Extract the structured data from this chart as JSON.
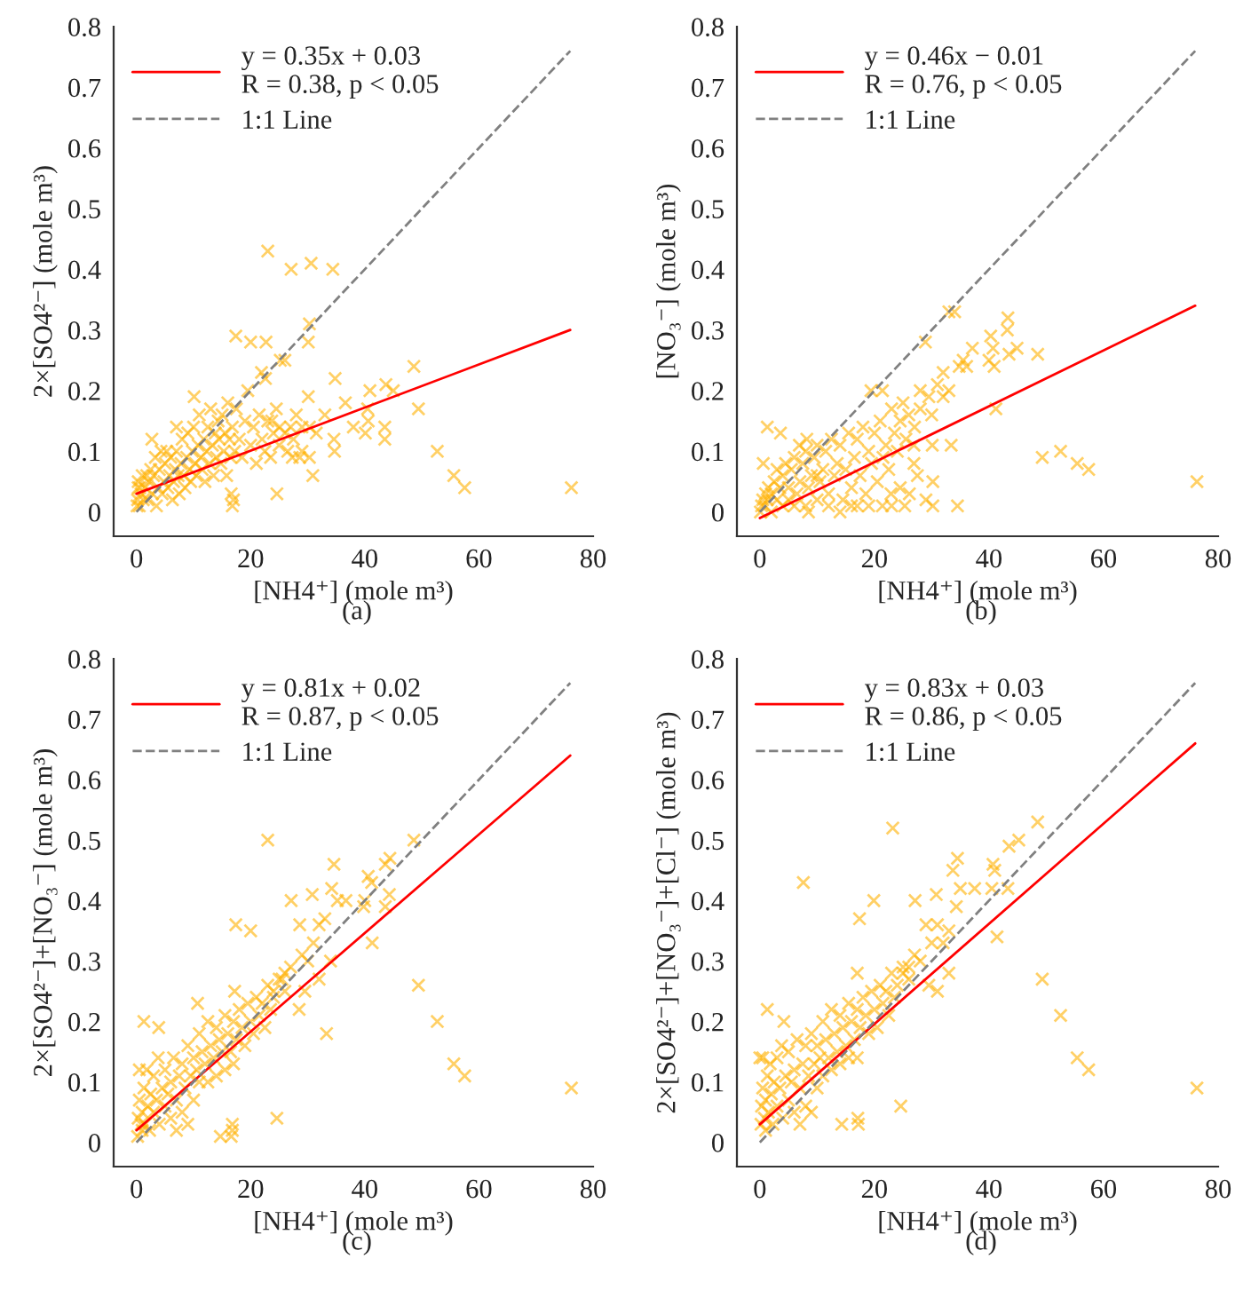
{
  "chart_data": [
    {
      "type": "scatter",
      "xlabel": "[NH4⁺] (mole m³)",
      "ylabel": "2×[SO4²⁻] (mole m³)",
      "annotations": [
        "(a)"
      ],
      "xlim": [
        -4,
        80
      ],
      "ylim": [
        -0.04,
        0.8
      ],
      "xticks": [
        0,
        20,
        40,
        60,
        80
      ],
      "yticks": [
        0,
        0.1,
        0.2,
        0.3,
        0.4,
        0.5,
        0.6,
        0.7,
        0.8
      ],
      "legend": "top left",
      "series": [
        {
          "color": "#ffb000",
          "marker": "cross",
          "x": [
            76.2,
            57.5,
            55.6,
            52.7,
            49.4,
            48.6,
            45,
            43.7,
            43.5,
            43.5,
            40.9,
            40.5,
            40.6,
            40.1,
            36.6,
            34.8,
            34.4,
            30.6,
            27.1,
            23,
            30.1,
            30.3,
            22.7,
            17.4,
            20,
            26,
            25.2,
            21.9,
            22.6,
            10.1,
            2.7,
            7,
            30.3,
            30.9,
            30.3,
            27.3,
            30.1,
            34.6,
            34.7,
            24.6,
            16.8,
            16.6,
            23.7,
            25.1,
            27,
            33,
            28.6,
            31.5,
            38,
            0.1,
            0.2,
            0.3,
            0.3,
            0.5,
            0.6,
            0.8,
            1,
            1.2,
            1.5,
            1.8,
            2,
            2.2,
            2.5,
            2.8,
            3,
            3.3,
            3.5,
            3.8,
            4,
            4.3,
            4.5,
            4.8,
            5,
            5.3,
            5.5,
            5.8,
            6,
            6.3,
            6.5,
            6.8,
            7,
            7.3,
            7.5,
            7.8,
            8,
            8.3,
            8.5,
            8.8,
            9,
            9.3,
            9.5,
            9.8,
            10,
            10.3,
            10.5,
            10.8,
            11,
            11.3,
            11.5,
            11.8,
            12,
            12.3,
            12.5,
            12.8,
            13,
            13.3,
            13.5,
            13.8,
            14,
            14.3,
            14.5,
            14.8,
            15,
            15.3,
            15.5,
            15.8,
            16,
            16.3,
            16.5,
            16.8,
            17,
            17.2,
            17.5,
            18,
            18.5,
            19,
            19.5,
            20,
            20.5,
            21,
            21.5,
            22,
            22.5,
            23,
            23.5,
            24,
            24.5,
            25,
            26,
            26.5,
            27.5,
            28,
            29,
            29
          ],
          "values": [
            0.04,
            0.04,
            0.06,
            0.1,
            0.17,
            0.24,
            0.2,
            0.21,
            0.14,
            0.12,
            0.2,
            0.17,
            0.15,
            0.13,
            0.18,
            0.22,
            0.4,
            0.41,
            0.4,
            0.43,
            0.28,
            0.31,
            0.28,
            0.29,
            0.28,
            0.25,
            0.25,
            0.23,
            0.22,
            0.19,
            0.12,
            0.14,
            0.14,
            0.06,
            0.09,
            0.09,
            0.19,
            0.12,
            0.1,
            0.03,
            0.01,
            0.03,
            0.15,
            0.14,
            0.14,
            0.16,
            0.09,
            0.13,
            0.14,
            0.01,
            0.02,
            0.04,
            0.05,
            0.01,
            0.04,
            0.03,
            0.06,
            0.02,
            0.04,
            0.06,
            0.02,
            0.05,
            0.07,
            0.03,
            0.06,
            0.09,
            0.01,
            0.04,
            0.07,
            0.1,
            0.03,
            0.05,
            0.08,
            0.1,
            0.04,
            0.06,
            0.09,
            0.02,
            0.05,
            0.07,
            0.1,
            0.06,
            0.03,
            0.08,
            0.12,
            0.06,
            0.04,
            0.09,
            0.13,
            0.07,
            0.05,
            0.1,
            0.14,
            0.08,
            0.06,
            0.11,
            0.16,
            0.09,
            0.07,
            0.12,
            0.05,
            0.1,
            0.14,
            0.08,
            0.17,
            0.11,
            0.06,
            0.13,
            0.09,
            0.15,
            0.12,
            0.08,
            0.16,
            0.1,
            0.13,
            0.06,
            0.18,
            0.12,
            0.09,
            0.14,
            0.02,
            0.1,
            0.17,
            0.12,
            0.09,
            0.15,
            0.2,
            0.11,
            0.14,
            0.08,
            0.16,
            0.12,
            0.1,
            0.15,
            0.09,
            0.13,
            0.17,
            0.11,
            0.13,
            0.1,
            0.12,
            0.16,
            0.14,
            0.1
          ]
        },
        {
          "type": "line",
          "name": "y = 0.35x + 0.03\nR = 0.38, p < 0.05",
          "color": "#ff0000",
          "line_style": "solid",
          "x": [
            0,
            76
          ],
          "values": [
            0.03,
            0.3
          ]
        },
        {
          "type": "line",
          "name": "1:1 Line",
          "color": "#808080",
          "line_style": "dashed",
          "x": [
            0,
            76
          ],
          "values": [
            0,
            0.76
          ]
        }
      ]
    },
    {
      "type": "scatter",
      "xlabel": "[NH4⁺] (mole m³)",
      "ylabel": "[NO₃⁻] (mole m³)",
      "annotations": [
        "(b)"
      ],
      "xlim": [
        -4,
        80
      ],
      "ylim": [
        -0.04,
        0.8
      ],
      "xticks": [
        0,
        20,
        40,
        60,
        80
      ],
      "yticks": [
        0,
        0.1,
        0.2,
        0.3,
        0.4,
        0.5,
        0.6,
        0.7,
        0.8
      ],
      "legend": "top left",
      "series": [
        {
          "color": "#ffb000",
          "marker": "cross",
          "x": [
            76.3,
            57.4,
            55.4,
            52.5,
            49.3,
            48.5,
            43.3,
            43.2,
            44.9,
            43.5,
            40.3,
            40.7,
            40.9,
            41.2,
            40,
            37.1,
            36.1,
            34,
            34.5,
            30.2,
            30.2,
            30.1,
            33.4,
            28.9,
            26.9,
            26.9,
            26.1,
            25.3,
            21.4,
            22.9,
            19.4,
            21.4,
            1.3,
            3.6,
            6.9,
            0.6,
            8.2,
            10,
            33,
            34.8,
            35.5,
            32,
            31,
            33,
            32,
            29.5,
            30,
            28,
            27.5,
            24.5,
            29,
            0.1,
            0.3,
            0.5,
            0.8,
            1,
            1.3,
            1.5,
            2,
            2,
            2.5,
            3,
            3,
            3.5,
            4,
            4,
            4.5,
            5,
            5,
            5.5,
            6,
            6,
            6.5,
            7,
            7.5,
            8,
            8,
            8.5,
            9,
            9.5,
            10,
            10,
            10.5,
            11,
            11.5,
            12,
            12,
            12.5,
            13,
            13.5,
            14,
            14.5,
            15,
            15.5,
            16,
            16.5,
            17,
            17,
            17.5,
            18,
            18.5,
            19,
            19.5,
            20,
            20.5,
            21,
            21.5,
            22,
            22.5,
            23,
            23.5,
            24,
            24.5,
            25,
            25.5,
            26,
            27,
            28,
            16,
            19,
            23,
            8.5,
            14
          ],
          "values": [
            0.05,
            0.07,
            0.08,
            0.1,
            0.09,
            0.26,
            0.32,
            0.3,
            0.27,
            0.26,
            0.29,
            0.27,
            0.24,
            0.17,
            0.25,
            0.27,
            0.24,
            0.33,
            0.01,
            0.01,
            0.05,
            0.11,
            0.11,
            0.28,
            0.11,
            0.08,
            0.03,
            0.01,
            0.01,
            0.03,
            0.2,
            0.2,
            0.14,
            0.13,
            0.11,
            0.08,
            0.12,
            0.06,
            0.33,
            0.24,
            0.25,
            0.23,
            0.21,
            0.2,
            0.19,
            0.19,
            0.16,
            0.2,
            0.06,
            0.04,
            0.02,
            0,
            0.01,
            0.02,
            0.01,
            0.03,
            0.02,
            0.04,
            0,
            0.03,
            0.05,
            0.02,
            0.07,
            0.04,
            0.01,
            0.06,
            0.08,
            0.02,
            0.04,
            0.07,
            0.01,
            0.09,
            0.03,
            0.05,
            0.08,
            0.01,
            0.1,
            0.04,
            0.06,
            0.09,
            0.02,
            0.11,
            0.05,
            0.07,
            0.1,
            0.01,
            0.03,
            0.12,
            0.06,
            0.08,
            0.11,
            0.02,
            0.07,
            0.13,
            0.04,
            0.09,
            0.01,
            0.12,
            0.06,
            0.14,
            0.03,
            0.1,
            0.08,
            0.13,
            0.05,
            0.15,
            0.09,
            0.11,
            0.07,
            0.17,
            0.13,
            0.1,
            0.15,
            0.18,
            0.12,
            0.16,
            0.14,
            0.17,
            0.01,
            0.01,
            0.01,
            0,
            0
          ]
        },
        {
          "type": "line",
          "name": "y = 0.46x − 0.01\nR = 0.76, p < 0.05",
          "color": "#ff0000",
          "line_style": "solid",
          "x": [
            0,
            76
          ],
          "values": [
            -0.01,
            0.34
          ]
        },
        {
          "type": "line",
          "name": "1:1 Line",
          "color": "#808080",
          "line_style": "dashed",
          "x": [
            0,
            76
          ],
          "values": [
            0,
            0.76
          ]
        }
      ]
    },
    {
      "type": "scatter",
      "xlabel": "[NH4⁺] (mole m³)",
      "ylabel": "2×[SO4²⁻]+[NO₃⁻] (mole m³)",
      "annotations": [
        "(c)"
      ],
      "xlim": [
        -4,
        80
      ],
      "ylim": [
        -0.04,
        0.8
      ],
      "xticks": [
        0,
        20,
        40,
        60,
        80
      ],
      "yticks": [
        0,
        0.1,
        0.2,
        0.3,
        0.4,
        0.5,
        0.6,
        0.7,
        0.8
      ],
      "legend": "top left",
      "series": [
        {
          "color": "#ffb000",
          "marker": "cross",
          "x": [
            76.2,
            57.5,
            55.6,
            52.7,
            49.4,
            48.6,
            23,
            44.4,
            43.6,
            40.6,
            41.2,
            39.8,
            41.3,
            43.6,
            44.3,
            34.6,
            34.2,
            35.2,
            36.7,
            30.8,
            27.1,
            29,
            28.6,
            33.3,
            24.6,
            17.4,
            20,
            17.2,
            10.7,
            1.3,
            3.9,
            16.6,
            16.8,
            14.7,
            16.8,
            31,
            32,
            33,
            30,
            32,
            34,
            28.5,
            26,
            25.5,
            24,
            29.5,
            40,
            0.2,
            0.3,
            0.5,
            0.8,
            1,
            1.3,
            1.5,
            1.8,
            2,
            2.3,
            2.5,
            3,
            3,
            3.5,
            3.8,
            4,
            4.5,
            5,
            5,
            5.5,
            6,
            6,
            6.5,
            7,
            7.5,
            8,
            8,
            8.5,
            9,
            9.5,
            10,
            10,
            10.5,
            11,
            11,
            11.5,
            12,
            12.5,
            12.5,
            13,
            13.5,
            14,
            14,
            14.5,
            15,
            15.5,
            15.5,
            16,
            16.5,
            17,
            17,
            17.5,
            18,
            18.5,
            19,
            19.5,
            20,
            20.5,
            21,
            21.5,
            22,
            22.5,
            23,
            23.5,
            24,
            25,
            26,
            27,
            0.5,
            1,
            7,
            9
          ],
          "values": [
            0.09,
            0.11,
            0.13,
            0.2,
            0.26,
            0.5,
            0.5,
            0.47,
            0.46,
            0.44,
            0.43,
            0.39,
            0.33,
            0.39,
            0.41,
            0.46,
            0.42,
            0.4,
            0.4,
            0.41,
            0.4,
            0.31,
            0.36,
            0.18,
            0.04,
            0.36,
            0.35,
            0.25,
            0.23,
            0.2,
            0.19,
            0.01,
            0.03,
            0.01,
            0.02,
            0.33,
            0.36,
            0.37,
            0.3,
            0.27,
            0.3,
            0.22,
            0.28,
            0.27,
            0.25,
            0.25,
            0.4,
            0.01,
            0.04,
            0.07,
            0.03,
            0.05,
            0.09,
            0.03,
            0.12,
            0.06,
            0.02,
            0.08,
            0.05,
            0.11,
            0.07,
            0.14,
            0.03,
            0.09,
            0.06,
            0.12,
            0.08,
            0.1,
            0.04,
            0.14,
            0.07,
            0.11,
            0.05,
            0.13,
            0.09,
            0.16,
            0.11,
            0.07,
            0.14,
            0.12,
            0.18,
            0.1,
            0.15,
            0.13,
            0.2,
            0.1,
            0.16,
            0.14,
            0.19,
            0.11,
            0.17,
            0.15,
            0.21,
            0.12,
            0.18,
            0.15,
            0.2,
            0.13,
            0.17,
            0.22,
            0.19,
            0.16,
            0.23,
            0.2,
            0.18,
            0.24,
            0.21,
            0.23,
            0.19,
            0.26,
            0.22,
            0.24,
            0.27,
            0.25,
            0.29,
            0.12,
            0.02,
            0.02,
            0.03
          ]
        },
        {
          "type": "line",
          "name": "y = 0.81x + 0.02\nR = 0.87, p < 0.05",
          "color": "#ff0000",
          "line_style": "solid",
          "x": [
            0,
            76
          ],
          "values": [
            0.02,
            0.64
          ]
        },
        {
          "type": "line",
          "name": "1:1 Line",
          "color": "#808080",
          "line_style": "dashed",
          "x": [
            0,
            76
          ],
          "values": [
            0,
            0.76
          ]
        }
      ]
    },
    {
      "type": "scatter",
      "xlabel": "[NH4⁺] (mole m³)",
      "ylabel": "2×[SO4²⁻]+[NO₃⁻]+[Cl⁻] (mole m³)",
      "annotations": [
        "(d)"
      ],
      "xlim": [
        -4,
        80
      ],
      "ylim": [
        -0.04,
        0.8
      ],
      "xticks": [
        0,
        20,
        40,
        60,
        80
      ],
      "yticks": [
        0,
        0.1,
        0.2,
        0.3,
        0.4,
        0.5,
        0.6,
        0.7,
        0.8
      ],
      "legend": "top left",
      "series": [
        {
          "color": "#ffb000",
          "marker": "cross",
          "x": [
            76.3,
            57.4,
            55.4,
            52.5,
            49.3,
            48.5,
            45.2,
            43.5,
            40.7,
            41.4,
            43.3,
            34.5,
            33.7,
            34.3,
            37.5,
            23.2,
            7.6,
            19.9,
            17.4,
            27.1,
            30.8,
            30,
            24.6,
            17.1,
            14.3,
            1.3,
            4.2,
            17,
            0,
            17.2,
            40.5,
            41,
            35,
            31,
            32,
            33,
            29,
            28,
            26,
            29.5,
            31,
            25,
            33,
            0.2,
            0.3,
            0.5,
            0.8,
            1,
            1.3,
            1.5,
            1.8,
            2,
            2.3,
            2.5,
            3,
            3,
            3.5,
            3.8,
            4,
            4.5,
            5,
            5,
            5.5,
            6,
            6,
            6.5,
            7,
            7.5,
            8,
            8,
            8.5,
            9,
            9.5,
            10,
            10,
            10.5,
            11,
            11,
            11.5,
            12,
            12.5,
            12.5,
            13,
            13.5,
            14,
            14,
            14.5,
            15,
            15.5,
            15.5,
            16,
            16.5,
            17,
            17,
            17.5,
            18,
            18.5,
            19,
            19.5,
            20,
            20.5,
            21,
            21.5,
            22,
            22.5,
            23,
            23.5,
            24,
            25,
            26,
            27,
            0.5,
            1,
            7,
            9
          ],
          "values": [
            0.09,
            0.12,
            0.14,
            0.21,
            0.27,
            0.53,
            0.5,
            0.49,
            0.46,
            0.34,
            0.42,
            0.47,
            0.45,
            0.39,
            0.42,
            0.52,
            0.43,
            0.4,
            0.37,
            0.4,
            0.41,
            0.33,
            0.06,
            0.04,
            0.03,
            0.22,
            0.2,
            0.28,
            0.14,
            0.03,
            0.42,
            0.45,
            0.42,
            0.36,
            0.33,
            0.35,
            0.36,
            0.3,
            0.29,
            0.26,
            0.25,
            0.28,
            0.28,
            0.03,
            0.06,
            0.09,
            0.04,
            0.07,
            0.11,
            0.05,
            0.13,
            0.08,
            0.03,
            0.1,
            0.06,
            0.14,
            0.09,
            0.16,
            0.04,
            0.11,
            0.07,
            0.15,
            0.1,
            0.12,
            0.05,
            0.17,
            0.09,
            0.13,
            0.06,
            0.16,
            0.11,
            0.18,
            0.13,
            0.09,
            0.16,
            0.14,
            0.2,
            0.11,
            0.17,
            0.14,
            0.22,
            0.12,
            0.18,
            0.15,
            0.21,
            0.13,
            0.19,
            0.16,
            0.23,
            0.14,
            0.2,
            0.17,
            0.22,
            0.14,
            0.19,
            0.24,
            0.21,
            0.18,
            0.25,
            0.22,
            0.19,
            0.26,
            0.23,
            0.25,
            0.21,
            0.28,
            0.24,
            0.26,
            0.29,
            0.27,
            0.31,
            0.14,
            0.02,
            0.03,
            0.05
          ]
        },
        {
          "type": "line",
          "name": "y = 0.83x + 0.03\nR = 0.86, p < 0.05",
          "color": "#ff0000",
          "line_style": "solid",
          "x": [
            0,
            76
          ],
          "values": [
            0.03,
            0.66
          ]
        },
        {
          "type": "line",
          "name": "1:1 Line",
          "color": "#808080",
          "line_style": "dashed",
          "x": [
            0,
            76
          ],
          "values": [
            0,
            0.76
          ]
        }
      ]
    }
  ]
}
